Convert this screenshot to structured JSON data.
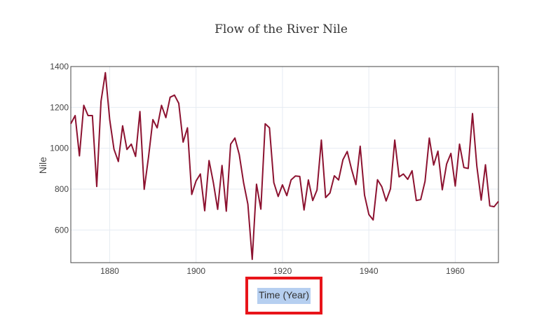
{
  "chart_data": {
    "type": "line",
    "title": "Flow of the River Nile",
    "xlabel": "Time (Year)",
    "ylabel": "Nile",
    "xlim": [
      1871,
      1970
    ],
    "ylim": [
      440,
      1400
    ],
    "xticks": [
      1880,
      1900,
      1920,
      1940,
      1960
    ],
    "yticks": [
      600,
      800,
      1000,
      1200,
      1400
    ],
    "grid": true,
    "line_color": "#8c1230",
    "series": [
      {
        "x": [
          1871,
          1872,
          1873,
          1874,
          1875,
          1876,
          1877,
          1878,
          1879,
          1880,
          1881,
          1882,
          1883,
          1884,
          1885,
          1886,
          1887,
          1888,
          1889,
          1890,
          1891,
          1892,
          1893,
          1894,
          1895,
          1896,
          1897,
          1898,
          1899,
          1900,
          1901,
          1902,
          1903,
          1904,
          1905,
          1906,
          1907,
          1908,
          1909,
          1910,
          1911,
          1912,
          1913,
          1914,
          1915,
          1916,
          1917,
          1918,
          1919,
          1920,
          1921,
          1922,
          1923,
          1924,
          1925,
          1926,
          1927,
          1928,
          1929,
          1930,
          1931,
          1932,
          1933,
          1934,
          1935,
          1936,
          1937,
          1938,
          1939,
          1940,
          1941,
          1942,
          1943,
          1944,
          1945,
          1946,
          1947,
          1948,
          1949,
          1950,
          1951,
          1952,
          1953,
          1954,
          1955,
          1956,
          1957,
          1958,
          1959,
          1960,
          1961,
          1962,
          1963,
          1964,
          1965,
          1966,
          1967,
          1968,
          1969,
          1970
        ],
        "y": [
          1120,
          1160,
          963,
          1210,
          1160,
          1160,
          813,
          1230,
          1370,
          1140,
          995,
          935,
          1110,
          994,
          1020,
          960,
          1180,
          799,
          958,
          1140,
          1100,
          1210,
          1150,
          1250,
          1260,
          1220,
          1030,
          1100,
          774,
          840,
          874,
          694,
          940,
          833,
          701,
          916,
          692,
          1020,
          1050,
          969,
          831,
          726,
          456,
          824,
          702,
          1120,
          1100,
          832,
          764,
          821,
          768,
          845,
          864,
          862,
          698,
          845,
          744,
          796,
          1040,
          759,
          781,
          865,
          845,
          944,
          984,
          897,
          822,
          1010,
          771,
          676,
          649,
          846,
          812,
          742,
          801,
          1040,
          860,
          874,
          848,
          890,
          744,
          749,
          838,
          1050,
          918,
          986,
          797,
          923,
          975,
          815,
          1020,
          906,
          901,
          1170,
          912,
          746,
          919,
          718,
          714,
          740
        ]
      }
    ]
  }
}
